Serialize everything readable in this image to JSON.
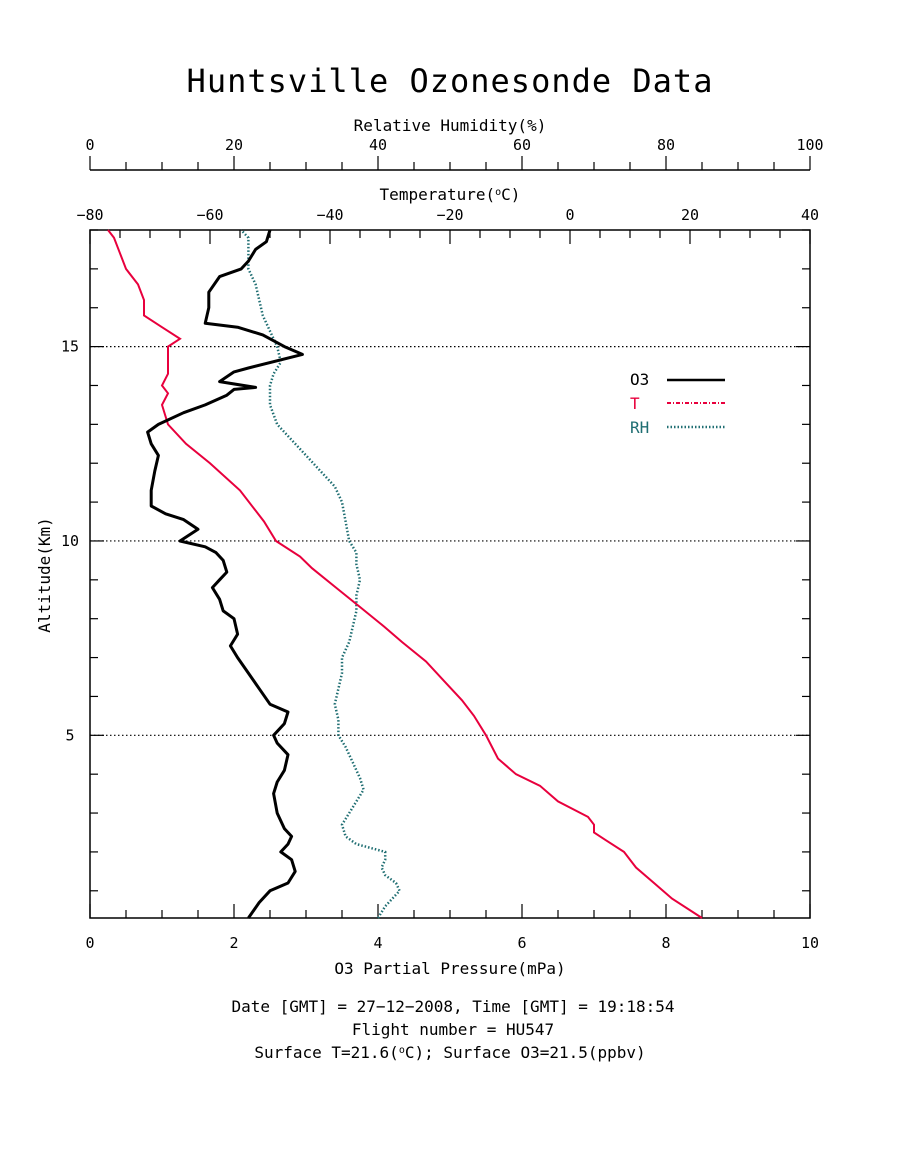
{
  "chart_data": {
    "type": "line",
    "title": "Huntsville Ozonesonde Data",
    "axes": {
      "rh": {
        "label": "Relative Humidity(%)",
        "range": [
          0,
          100
        ],
        "ticks": [
          "0",
          "20",
          "40",
          "60",
          "80",
          "100"
        ]
      },
      "temperature": {
        "label_prefix": "Temperature(",
        "label_unit_sup": "o",
        "label_suffix": "C)",
        "range": [
          -80,
          40
        ],
        "ticks": [
          "−80",
          "−60",
          "−40",
          "−20",
          "0",
          "20",
          "40"
        ]
      },
      "ozone": {
        "label": "O3 Partial Pressure(mPa)",
        "range": [
          0,
          10
        ],
        "ticks": [
          "0",
          "2",
          "4",
          "6",
          "8",
          "10"
        ]
      },
      "altitude": {
        "label": "Altitude(Km)",
        "range": [
          0.3,
          18
        ],
        "ticks": [
          "5",
          "10",
          "15"
        ]
      }
    },
    "reference_lines_km": [
      5,
      10,
      15
    ],
    "legend": {
      "placement": "upper-right",
      "items": [
        {
          "label": "O3",
          "color": "#000000",
          "style": "solid"
        },
        {
          "label": "T",
          "color": "#e8003d",
          "style": "dash-dot"
        },
        {
          "label": "RH",
          "color": "#1f6e72",
          "style": "dotted"
        }
      ]
    },
    "series": [
      {
        "name": "O3",
        "units": "mPa",
        "color": "#000000",
        "points": [
          [
            2.2,
            0.3
          ],
          [
            2.35,
            0.7
          ],
          [
            2.5,
            1.0
          ],
          [
            2.75,
            1.2
          ],
          [
            2.85,
            1.5
          ],
          [
            2.8,
            1.8
          ],
          [
            2.65,
            2.0
          ],
          [
            2.75,
            2.2
          ],
          [
            2.8,
            2.4
          ],
          [
            2.7,
            2.6
          ],
          [
            2.6,
            3.0
          ],
          [
            2.55,
            3.5
          ],
          [
            2.6,
            3.8
          ],
          [
            2.7,
            4.1
          ],
          [
            2.75,
            4.5
          ],
          [
            2.6,
            4.8
          ],
          [
            2.55,
            5.0
          ],
          [
            2.7,
            5.3
          ],
          [
            2.75,
            5.6
          ],
          [
            2.5,
            5.8
          ],
          [
            2.35,
            6.2
          ],
          [
            2.2,
            6.6
          ],
          [
            2.05,
            7.0
          ],
          [
            1.95,
            7.3
          ],
          [
            2.05,
            7.6
          ],
          [
            2.0,
            8.0
          ],
          [
            1.85,
            8.2
          ],
          [
            1.8,
            8.5
          ],
          [
            1.7,
            8.8
          ],
          [
            1.8,
            9.0
          ],
          [
            1.9,
            9.2
          ],
          [
            1.85,
            9.5
          ],
          [
            1.75,
            9.7
          ],
          [
            1.6,
            9.85
          ],
          [
            1.25,
            10.0
          ],
          [
            1.5,
            10.3
          ],
          [
            1.3,
            10.55
          ],
          [
            1.05,
            10.7
          ],
          [
            0.85,
            10.9
          ],
          [
            0.85,
            11.3
          ],
          [
            0.9,
            11.8
          ],
          [
            0.95,
            12.2
          ],
          [
            0.85,
            12.5
          ],
          [
            0.8,
            12.8
          ],
          [
            0.95,
            13.0
          ],
          [
            1.3,
            13.3
          ],
          [
            1.6,
            13.5
          ],
          [
            1.9,
            13.75
          ],
          [
            2.0,
            13.9
          ],
          [
            2.3,
            13.95
          ],
          [
            1.8,
            14.1
          ],
          [
            2.0,
            14.35
          ],
          [
            2.2,
            14.45
          ],
          [
            2.95,
            14.8
          ],
          [
            2.7,
            15.0
          ],
          [
            2.4,
            15.3
          ],
          [
            2.05,
            15.5
          ],
          [
            1.6,
            15.6
          ],
          [
            1.65,
            16.0
          ],
          [
            1.65,
            16.4
          ],
          [
            1.8,
            16.8
          ],
          [
            2.1,
            17.0
          ],
          [
            2.2,
            17.2
          ],
          [
            2.3,
            17.5
          ],
          [
            2.45,
            17.7
          ],
          [
            2.5,
            18.0
          ]
        ]
      },
      {
        "name": "T",
        "units": "°C",
        "color": "#e8003d",
        "points": [
          [
            22,
            0.3
          ],
          [
            17,
            0.8
          ],
          [
            14,
            1.2
          ],
          [
            11,
            1.6
          ],
          [
            9,
            2.0
          ],
          [
            6,
            2.3
          ],
          [
            4,
            2.5
          ],
          [
            4,
            2.7
          ],
          [
            3,
            2.9
          ],
          [
            -2,
            3.3
          ],
          [
            -5,
            3.7
          ],
          [
            -9,
            4.0
          ],
          [
            -12,
            4.4
          ],
          [
            -14,
            5.0
          ],
          [
            -16,
            5.5
          ],
          [
            -18,
            5.9
          ],
          [
            -21,
            6.4
          ],
          [
            -24,
            6.9
          ],
          [
            -28,
            7.4
          ],
          [
            -31,
            7.8
          ],
          [
            -35,
            8.3
          ],
          [
            -39,
            8.8
          ],
          [
            -43,
            9.3
          ],
          [
            -45,
            9.6
          ],
          [
            -49,
            10.0
          ],
          [
            -51,
            10.5
          ],
          [
            -55,
            11.3
          ],
          [
            -60,
            12.0
          ],
          [
            -64,
            12.5
          ],
          [
            -67,
            13.0
          ],
          [
            -68,
            13.5
          ],
          [
            -67,
            13.8
          ],
          [
            -68,
            14.0
          ],
          [
            -67,
            14.3
          ],
          [
            -67,
            14.6
          ],
          [
            -67,
            15.0
          ],
          [
            -65,
            15.2
          ],
          [
            -68,
            15.5
          ],
          [
            -71,
            15.8
          ],
          [
            -71,
            16.2
          ],
          [
            -72,
            16.6
          ],
          [
            -74,
            17.0
          ],
          [
            -75,
            17.4
          ],
          [
            -76,
            17.8
          ],
          [
            -77,
            18.0
          ]
        ]
      },
      {
        "name": "RH",
        "units": "%",
        "color": "#1f6e72",
        "points": [
          [
            40,
            0.3
          ],
          [
            41,
            0.6
          ],
          [
            43,
            1.0
          ],
          [
            42.5,
            1.2
          ],
          [
            41,
            1.4
          ],
          [
            40.5,
            1.6
          ],
          [
            41,
            1.8
          ],
          [
            41,
            2.0
          ],
          [
            39,
            2.1
          ],
          [
            37,
            2.2
          ],
          [
            35.5,
            2.4
          ],
          [
            35,
            2.7
          ],
          [
            36,
            3.0
          ],
          [
            37,
            3.3
          ],
          [
            38,
            3.6
          ],
          [
            37.5,
            3.9
          ],
          [
            36.5,
            4.3
          ],
          [
            35.5,
            4.7
          ],
          [
            34.5,
            5.0
          ],
          [
            34.5,
            5.4
          ],
          [
            34,
            5.8
          ],
          [
            34.5,
            6.2
          ],
          [
            35,
            6.6
          ],
          [
            35,
            7.0
          ],
          [
            36,
            7.4
          ],
          [
            36.5,
            7.8
          ],
          [
            37,
            8.2
          ],
          [
            37,
            8.6
          ],
          [
            37.5,
            9.0
          ],
          [
            37,
            9.4
          ],
          [
            37,
            9.7
          ],
          [
            36,
            10.0
          ],
          [
            35.5,
            10.5
          ],
          [
            35,
            11.0
          ],
          [
            34,
            11.4
          ],
          [
            32,
            11.8
          ],
          [
            30,
            12.2
          ],
          [
            28,
            12.6
          ],
          [
            26,
            13.0
          ],
          [
            25,
            13.5
          ],
          [
            25,
            14.0
          ],
          [
            25.5,
            14.3
          ],
          [
            26.5,
            14.6
          ],
          [
            26,
            15.0
          ],
          [
            25,
            15.4
          ],
          [
            24,
            15.8
          ],
          [
            23.5,
            16.2
          ],
          [
            23,
            16.6
          ],
          [
            22,
            17.0
          ],
          [
            22,
            17.4
          ],
          [
            22,
            17.8
          ],
          [
            21,
            18.0
          ]
        ]
      }
    ]
  },
  "footer": {
    "line1": "Date [GMT] = 27−12−2008,  Time [GMT] = 19:18:54",
    "line2": "Flight number = HU547",
    "line3_prefix": "Surface T=21.6(",
    "line3_sup": "o",
    "line3_suffix": "C); Surface O3=21.5(ppbv)"
  }
}
